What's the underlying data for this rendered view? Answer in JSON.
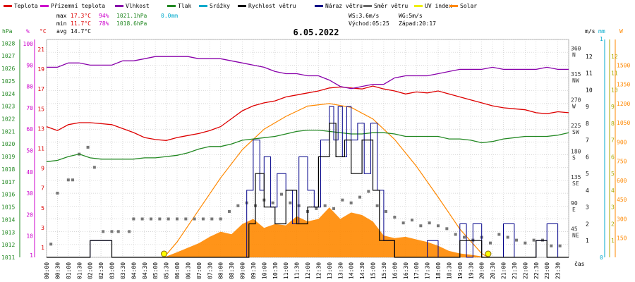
{
  "chart_data": {
    "type": "line",
    "title": "6.05.2022",
    "legend": [
      {
        "name": "Teplota",
        "color": "#dd0000"
      },
      {
        "name": "Přízemní teplota",
        "color": "#cc00cc"
      },
      {
        "name": "Vlhkost",
        "color": "#8800aa"
      },
      {
        "name": "Tlak",
        "color": "#228822"
      },
      {
        "name": "Srážky",
        "color": "#00aacc"
      },
      {
        "name": "Rychlost větru",
        "color": "#000000"
      },
      {
        "name": "Náraz větru",
        "color": "#000088"
      },
      {
        "name": "Směr větru",
        "color": "#666666"
      },
      {
        "name": "UV index",
        "color": "#eeee00"
      },
      {
        "name": "Solar",
        "color": "#ff8800"
      }
    ],
    "stats": {
      "max_label": "max",
      "max_temp": "17.3°C",
      "max_hum": "94%",
      "max_press": "1021.1hPa",
      "max_rain": "0.0mm",
      "min_label": "min",
      "min_temp": "11.7°C",
      "min_hum": "78%",
      "min_press": "1018.6hPa",
      "avg_label": "avg",
      "avg_temp": "14.7°C",
      "ws": "WS:3.6m/s",
      "wg": "WG:5m/s",
      "sunrise": "Východ:05:25",
      "sunset": "Západ:20:17"
    },
    "axes": {
      "hpa": {
        "unit": "hPa",
        "ticks": [
          "1028",
          "1027",
          "1026",
          "1025",
          "1024",
          "1023",
          "1022",
          "1021",
          "1020",
          "1019",
          "1018",
          "1017",
          "1016",
          "1015",
          "1014",
          "1013",
          "1012",
          "1011"
        ],
        "color": "#228822"
      },
      "pct": {
        "unit": "%",
        "ticks": [
          "100",
          "90",
          "80",
          "70",
          "60",
          "50",
          "40",
          "30",
          "20",
          "10",
          "1"
        ],
        "color": "#cc00cc"
      },
      "temp": {
        "unit": "°C",
        "ticks": [
          "21",
          "19",
          "17",
          "15",
          "13",
          "11",
          "9",
          "7",
          "5",
          "3",
          "1"
        ],
        "color": "#dd0000"
      },
      "dir": {
        "ticks": [
          "360",
          "315",
          "270",
          "225",
          "180",
          "135",
          "90",
          "45"
        ],
        "labels": [
          "N",
          "NW",
          "W",
          "SW",
          "S",
          "SE",
          "E",
          "NE"
        ],
        "color": "#666666"
      },
      "ms": {
        "unit": "m/s",
        "ticks": [
          "12",
          "11",
          "10",
          "9",
          "8",
          "7",
          "6",
          "5",
          "4",
          "3",
          "2",
          "1"
        ],
        "color": "#000000"
      },
      "mm": {
        "unit": "mm",
        "ticks": [
          "1",
          "0"
        ],
        "color": "#00aacc"
      },
      "uv": {
        "ticks": [
          "12",
          "11",
          "10",
          "9",
          "8",
          "7",
          "6",
          "5",
          "4",
          "3",
          "2",
          "1"
        ],
        "color": "#aaaa00"
      },
      "solar": {
        "unit": "W",
        "ticks": [
          "1500",
          "1350",
          "1200",
          "1050",
          "900",
          "750",
          "600",
          "450",
          "300",
          "150"
        ],
        "color": "#ff8800"
      },
      "time_label": "čas",
      "time_ticks": [
        "00:00",
        "00:30",
        "01:00",
        "01:30",
        "02:00",
        "02:30",
        "03:00",
        "03:30",
        "04:00",
        "04:30",
        "05:00",
        "05:30",
        "06:00",
        "06:30",
        "07:00",
        "07:30",
        "08:00",
        "08:30",
        "09:00",
        "09:30",
        "10:00",
        "10:30",
        "11:00",
        "11:30",
        "12:00",
        "12:30",
        "13:00",
        "13:30",
        "14:00",
        "14:30",
        "15:00",
        "15:30",
        "16:00",
        "16:30",
        "17:00",
        "17:30",
        "18:00",
        "18:30",
        "19:00",
        "19:30",
        "20:00",
        "20:30",
        "21:00",
        "21:30",
        "22:00",
        "22:30",
        "23:00",
        "23:30"
      ]
    },
    "series": [
      {
        "name": "Teplota",
        "unit": "°C",
        "x": [
          0,
          0.5,
          1,
          1.5,
          2,
          2.5,
          3,
          3.5,
          4,
          4.5,
          5,
          5.5,
          6,
          6.5,
          7,
          7.5,
          8,
          8.5,
          9,
          9.5,
          10,
          10.5,
          11,
          11.5,
          12,
          12.5,
          13,
          13.5,
          14,
          14.5,
          15,
          15.5,
          16,
          16.5,
          17,
          17.5,
          18,
          18.5,
          19,
          19.5,
          20,
          20.5,
          21,
          21.5,
          22,
          22.5,
          23,
          23.5,
          24
        ],
        "y": [
          13.2,
          12.8,
          13.4,
          13.6,
          13.6,
          13.5,
          13.4,
          13.0,
          12.6,
          12.1,
          11.9,
          11.8,
          12.1,
          12.3,
          12.5,
          12.8,
          13.2,
          14.0,
          14.8,
          15.3,
          15.6,
          15.8,
          16.2,
          16.4,
          16.6,
          16.8,
          17.1,
          17.2,
          17.1,
          17.0,
          17.3,
          17.0,
          16.8,
          16.5,
          16.7,
          16.6,
          16.8,
          16.5,
          16.2,
          15.9,
          15.6,
          15.3,
          15.1,
          15.0,
          14.9,
          14.6,
          14.5,
          14.7,
          14.6
        ]
      },
      {
        "name": "Vlhkost",
        "unit": "%",
        "x": [
          0,
          0.5,
          1,
          1.5,
          2,
          2.5,
          3,
          3.5,
          4,
          4.5,
          5,
          5.5,
          6,
          6.5,
          7,
          7.5,
          8,
          8.5,
          9,
          9.5,
          10,
          10.5,
          11,
          11.5,
          12,
          12.5,
          13,
          13.5,
          14,
          14.5,
          15,
          15.5,
          16,
          16.5,
          17,
          17.5,
          18,
          18.5,
          19,
          19.5,
          20,
          20.5,
          21,
          21.5,
          22,
          22.5,
          23,
          23.5,
          24
        ],
        "y": [
          89,
          89,
          91,
          91,
          90,
          90,
          90,
          92,
          92,
          93,
          94,
          94,
          94,
          94,
          93,
          93,
          93,
          92,
          91,
          90,
          89,
          87,
          86,
          86,
          85,
          85,
          83,
          80,
          79,
          80,
          81,
          81,
          84,
          85,
          85,
          85,
          86,
          87,
          88,
          88,
          88,
          89,
          88,
          88,
          88,
          88,
          89,
          88,
          88
        ]
      },
      {
        "name": "Tlak",
        "unit": "hPa",
        "x": [
          0,
          0.5,
          1,
          1.5,
          2,
          2.5,
          3,
          3.5,
          4,
          4.5,
          5,
          5.5,
          6,
          6.5,
          7,
          7.5,
          8,
          8.5,
          9,
          9.5,
          10,
          10.5,
          11,
          11.5,
          12,
          12.5,
          13,
          13.5,
          14,
          14.5,
          15,
          15.5,
          16,
          16.5,
          17,
          17.5,
          18,
          18.5,
          19,
          19.5,
          20,
          20.5,
          21,
          21.5,
          22,
          22.5,
          23,
          23.5,
          24
        ],
        "y": [
          1018.6,
          1018.7,
          1019.0,
          1019.2,
          1018.9,
          1018.8,
          1018.8,
          1018.8,
          1018.8,
          1018.9,
          1018.9,
          1019.0,
          1019.1,
          1019.3,
          1019.6,
          1019.8,
          1019.8,
          1020.0,
          1020.3,
          1020.4,
          1020.5,
          1020.6,
          1020.8,
          1021.0,
          1021.1,
          1021.1,
          1021.0,
          1020.9,
          1020.8,
          1020.8,
          1020.9,
          1020.9,
          1020.8,
          1020.6,
          1020.6,
          1020.6,
          1020.6,
          1020.4,
          1020.4,
          1020.3,
          1020.1,
          1020.2,
          1020.4,
          1020.5,
          1020.6,
          1020.6,
          1020.6,
          1020.7,
          1020.9
        ]
      },
      {
        "name": "Rychlost větru",
        "unit": "m/s",
        "x": [
          0,
          1,
          2,
          2.5,
          3,
          4,
          5,
          6,
          7,
          8,
          9,
          9.3,
          9.6,
          10,
          10.5,
          11,
          11.5,
          12,
          12.5,
          13,
          13.3,
          13.7,
          14,
          14.5,
          15,
          15.3,
          16,
          17,
          18,
          19,
          19.5,
          20,
          21,
          22,
          22.5,
          23,
          24
        ],
        "y": [
          0,
          0,
          1,
          1,
          0,
          0,
          0,
          0,
          0,
          0,
          0,
          2,
          5,
          3,
          2,
          4,
          2,
          3,
          6,
          8,
          6,
          7,
          5,
          7,
          4,
          1,
          0,
          0,
          0,
          1,
          1,
          0,
          0,
          0,
          1,
          0,
          0
        ]
      },
      {
        "name": "Náraz větru",
        "unit": "m/s",
        "x": [
          0,
          1,
          2,
          2.5,
          3,
          4,
          5,
          6,
          7,
          8,
          9,
          9.2,
          9.5,
          9.8,
          10,
          10.3,
          10.6,
          11,
          11.3,
          11.6,
          12,
          12.3,
          12.6,
          13,
          13.2,
          13.4,
          13.6,
          13.8,
          14,
          14.3,
          14.6,
          14.9,
          15.2,
          15.5,
          16,
          17,
          17.5,
          18,
          18.5,
          19,
          19.3,
          19.6,
          20,
          20.5,
          21,
          21.5,
          22,
          22.5,
          23,
          23.5,
          24
        ],
        "y": [
          0,
          0,
          1,
          1,
          0,
          0,
          0,
          0,
          0,
          0,
          0,
          4,
          7,
          4,
          6,
          3,
          5,
          4,
          2,
          6,
          4,
          3,
          7,
          9,
          7,
          9,
          6,
          9,
          7,
          8,
          5,
          8,
          4,
          1,
          0,
          0,
          1,
          0,
          0,
          2,
          0,
          2,
          0,
          0,
          2,
          0,
          0,
          1,
          2,
          0,
          0
        ]
      },
      {
        "name": "Solar",
        "unit": "W",
        "x": [
          5.4,
          6,
          7,
          7.5,
          8,
          8.5,
          9,
          9.5,
          10,
          10.5,
          11,
          11.5,
          12,
          12.5,
          13,
          13.5,
          14,
          14.5,
          15,
          15.5,
          16,
          16.5,
          17,
          17.5,
          18,
          18.5,
          19,
          19.5,
          20.3
        ],
        "y": [
          0,
          40,
          110,
          160,
          200,
          180,
          260,
          300,
          230,
          260,
          250,
          320,
          280,
          300,
          390,
          300,
          350,
          330,
          280,
          170,
          150,
          160,
          140,
          120,
          90,
          50,
          30,
          20,
          0
        ]
      },
      {
        "name": "Solar max",
        "unit": "W",
        "x": [
          5.4,
          6,
          7,
          8,
          9,
          10,
          11,
          12,
          13,
          14,
          15,
          16,
          17,
          18,
          19,
          20,
          20.3
        ],
        "y": [
          0,
          120,
          370,
          620,
          840,
          1000,
          1100,
          1180,
          1200,
          1170,
          1080,
          920,
          710,
          470,
          220,
          30,
          0
        ]
      }
    ],
    "wind_dir_points": [
      [
        0.2,
        23
      ],
      [
        0.5,
        112
      ],
      [
        1,
        135
      ],
      [
        1.2,
        135
      ],
      [
        1.5,
        180
      ],
      [
        1.9,
        192
      ],
      [
        2.2,
        157
      ],
      [
        2.6,
        45
      ],
      [
        3,
        45
      ],
      [
        3.3,
        45
      ],
      [
        3.8,
        45
      ],
      [
        4,
        67
      ],
      [
        4.4,
        67
      ],
      [
        4.8,
        67
      ],
      [
        5.2,
        67
      ],
      [
        5.6,
        67
      ],
      [
        6,
        67
      ],
      [
        6.4,
        67
      ],
      [
        6.8,
        67
      ],
      [
        7.2,
        67
      ],
      [
        7.6,
        67
      ],
      [
        8,
        67
      ],
      [
        8.4,
        80
      ],
      [
        8.8,
        90
      ],
      [
        9.2,
        95
      ],
      [
        9.6,
        90
      ],
      [
        10,
        100
      ],
      [
        10.4,
        95
      ],
      [
        10.8,
        110
      ],
      [
        11.2,
        95
      ],
      [
        11.6,
        90
      ],
      [
        12,
        80
      ],
      [
        12.4,
        85
      ],
      [
        12.8,
        90
      ],
      [
        13.2,
        85
      ],
      [
        13.6,
        100
      ],
      [
        14,
        95
      ],
      [
        14.4,
        105
      ],
      [
        14.8,
        115
      ],
      [
        15.2,
        90
      ],
      [
        15.6,
        80
      ],
      [
        16,
        70
      ],
      [
        16.4,
        60
      ],
      [
        16.8,
        65
      ],
      [
        17.2,
        55
      ],
      [
        17.6,
        60
      ],
      [
        18,
        55
      ],
      [
        18.4,
        50
      ],
      [
        18.8,
        40
      ],
      [
        19.2,
        35
      ],
      [
        19.6,
        30
      ],
      [
        20,
        35
      ],
      [
        20.4,
        25
      ],
      [
        20.8,
        40
      ],
      [
        21.2,
        35
      ],
      [
        21.6,
        30
      ],
      [
        22,
        25
      ],
      [
        22.4,
        30
      ],
      [
        22.8,
        30
      ],
      [
        23.2,
        20
      ],
      [
        23.6,
        20
      ]
    ],
    "markers": [
      {
        "x": 5.4,
        "label": "sunrise"
      },
      {
        "x": 20.3,
        "label": "sunset"
      }
    ]
  }
}
